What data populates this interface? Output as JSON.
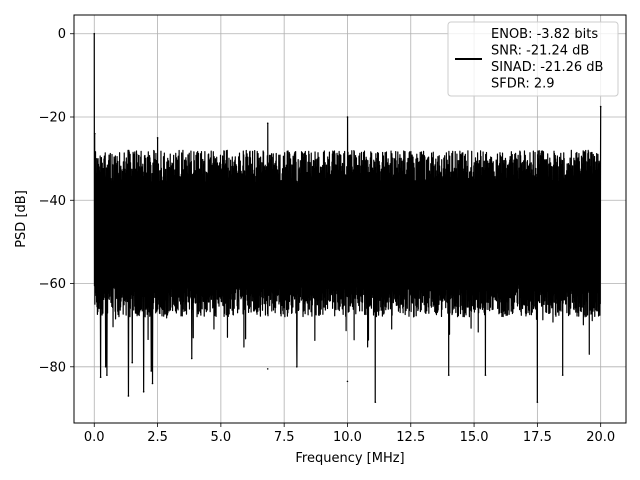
{
  "chart_data": {
    "type": "line",
    "title": "",
    "xlabel": "Frequency [MHz]",
    "ylabel": "PSD [dB]",
    "xlim": [
      -0.8,
      21.0
    ],
    "ylim": [
      -93.5,
      4.5
    ],
    "xticks": [
      0.0,
      2.5,
      5.0,
      7.5,
      10.0,
      12.5,
      15.0,
      17.5,
      20.0
    ],
    "xtick_labels": [
      "0.0",
      "2.5",
      "5.0",
      "7.5",
      "10.0",
      "12.5",
      "15.0",
      "17.5",
      "20.0"
    ],
    "yticks": [
      0,
      -20,
      -40,
      -60,
      -80
    ],
    "ytick_labels": [
      "0",
      "−20",
      "−40",
      "−60",
      "−80"
    ],
    "grid": true,
    "legend_position": "top-right",
    "series": [
      {
        "name": "ENOB: -3.82 bits\nSNR: -21.24 dB\nSINAD: -21.26 dB\nSFDR: 2.9",
        "color": "#000000",
        "noise_band": {
          "upper_db_typical": -28,
          "lower_db_typical": -68,
          "x_start": 0.0,
          "x_end": 20.0
        },
        "peaks": [
          {
            "x": 0.0,
            "y": 0.0
          },
          {
            "x": 0.02,
            "y": -24.0
          },
          {
            "x": 2.5,
            "y": -25.0
          },
          {
            "x": 6.85,
            "y": -21.5
          },
          {
            "x": 10.0,
            "y": -20.0
          },
          {
            "x": 20.0,
            "y": -17.5
          }
        ],
        "dips": [
          {
            "x": 0.25,
            "y": -82.5
          },
          {
            "x": 0.45,
            "y": -80.0
          },
          {
            "x": 0.5,
            "y": -82.0
          },
          {
            "x": 1.35,
            "y": -87.0
          },
          {
            "x": 1.5,
            "y": -79.0
          },
          {
            "x": 1.95,
            "y": -86.0
          },
          {
            "x": 2.25,
            "y": -81.0
          },
          {
            "x": 2.3,
            "y": -84.0
          },
          {
            "x": 3.85,
            "y": -78.0
          },
          {
            "x": 6.85,
            "y": -80.5
          },
          {
            "x": 8.0,
            "y": -80.0
          },
          {
            "x": 10.0,
            "y": -83.5
          },
          {
            "x": 11.1,
            "y": -88.5
          },
          {
            "x": 14.0,
            "y": -82.0
          },
          {
            "x": 15.45,
            "y": -82.0
          },
          {
            "x": 17.5,
            "y": -88.5
          },
          {
            "x": 18.5,
            "y": -82.0
          }
        ]
      }
    ]
  }
}
